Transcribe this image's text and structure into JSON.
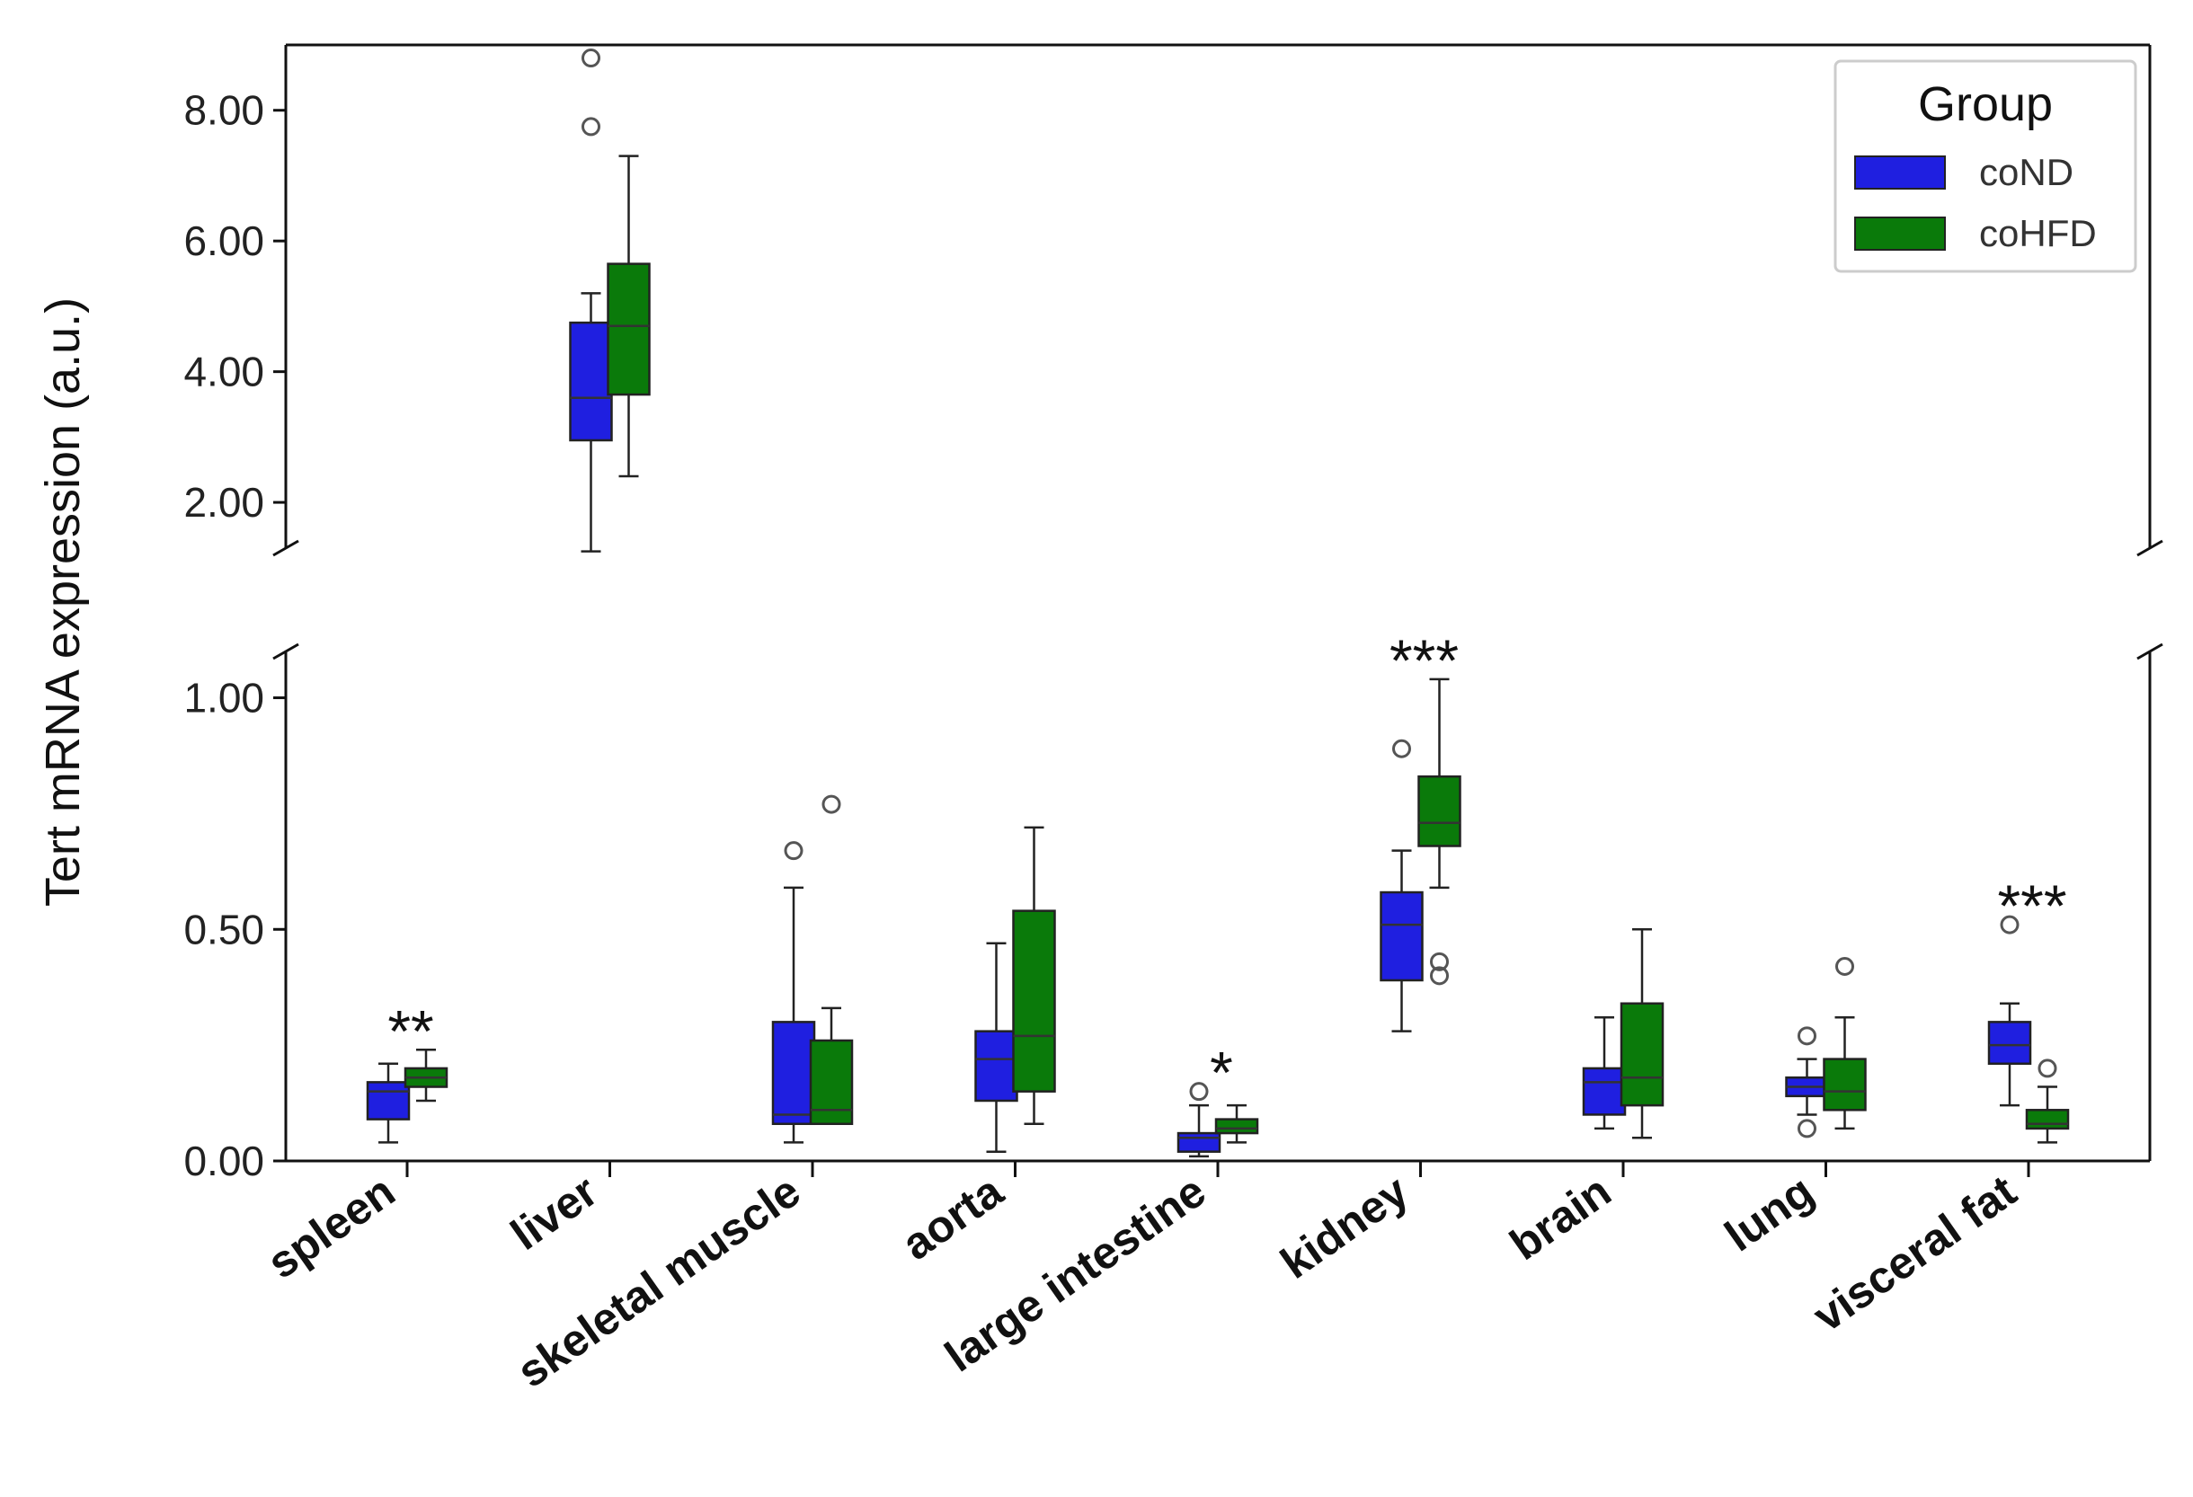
{
  "chart_data": {
    "type": "box",
    "ylabel": "Tert mRNA expression (a.u.)",
    "xlabel": "",
    "broken_axis": true,
    "lower_ylim": [
      0,
      1.1
    ],
    "upper_ylim": [
      1.3,
      9.0
    ],
    "lower_yticks": [
      {
        "value": 0.0,
        "label": "0.00"
      },
      {
        "value": 0.5,
        "label": "0.50"
      },
      {
        "value": 1.0,
        "label": "1.00"
      }
    ],
    "upper_yticks": [
      {
        "value": 2.0,
        "label": "2.00"
      },
      {
        "value": 4.0,
        "label": "4.00"
      },
      {
        "value": 6.0,
        "label": "6.00"
      },
      {
        "value": 8.0,
        "label": "8.00"
      }
    ],
    "legend": {
      "title": "Group",
      "position": "top-right",
      "entries": [
        {
          "name": "coND",
          "color": "#1f1fe0"
        },
        {
          "name": "coHFD",
          "color": "#0a7a0a"
        }
      ]
    },
    "categories": [
      "spleen",
      "liver",
      "skeletal muscle",
      "aorta",
      "large intestine",
      "kidney",
      "brain",
      "lung",
      "visceral fat"
    ],
    "significance": [
      "**",
      "",
      "",
      "",
      "*",
      "***",
      "",
      "",
      "***"
    ],
    "series": [
      {
        "name": "coND",
        "color": "#1f1fe0",
        "boxes": [
          {
            "min": 0.04,
            "q1": 0.09,
            "median": 0.15,
            "q3": 0.17,
            "max": 0.21,
            "outliers": []
          },
          {
            "min": 1.25,
            "q1": 2.95,
            "median": 3.6,
            "q3": 4.75,
            "max": 5.2,
            "outliers": [
              7.75,
              8.8
            ]
          },
          {
            "min": 0.04,
            "q1": 0.08,
            "median": 0.1,
            "q3": 0.3,
            "max": 0.59,
            "outliers": [
              0.67
            ]
          },
          {
            "min": 0.02,
            "q1": 0.13,
            "median": 0.22,
            "q3": 0.28,
            "max": 0.47,
            "outliers": []
          },
          {
            "min": 0.01,
            "q1": 0.02,
            "median": 0.05,
            "q3": 0.06,
            "max": 0.12,
            "outliers": [
              0.15
            ]
          },
          {
            "min": 0.28,
            "q1": 0.39,
            "median": 0.51,
            "q3": 0.58,
            "max": 0.67,
            "outliers": [
              0.89
            ]
          },
          {
            "min": 0.07,
            "q1": 0.1,
            "median": 0.17,
            "q3": 0.2,
            "max": 0.31,
            "outliers": []
          },
          {
            "min": 0.1,
            "q1": 0.14,
            "median": 0.16,
            "q3": 0.18,
            "max": 0.22,
            "outliers": [
              0.27,
              0.07
            ]
          },
          {
            "min": 0.12,
            "q1": 0.21,
            "median": 0.25,
            "q3": 0.3,
            "max": 0.34,
            "outliers": [
              0.51
            ]
          }
        ]
      },
      {
        "name": "coHFD",
        "color": "#0a7a0a",
        "boxes": [
          {
            "min": 0.13,
            "q1": 0.16,
            "median": 0.18,
            "q3": 0.2,
            "max": 0.24,
            "outliers": []
          },
          {
            "min": 2.4,
            "q1": 3.65,
            "median": 4.7,
            "q3": 5.65,
            "max": 7.3,
            "outliers": []
          },
          {
            "min": 0.08,
            "q1": 0.08,
            "median": 0.11,
            "q3": 0.26,
            "max": 0.33,
            "outliers": [
              0.77
            ]
          },
          {
            "min": 0.08,
            "q1": 0.15,
            "median": 0.27,
            "q3": 0.54,
            "max": 0.72,
            "outliers": []
          },
          {
            "min": 0.04,
            "q1": 0.06,
            "median": 0.07,
            "q3": 0.09,
            "max": 0.12,
            "outliers": []
          },
          {
            "min": 0.59,
            "q1": 0.68,
            "median": 0.73,
            "q3": 0.83,
            "max": 1.04,
            "outliers": [
              0.43,
              0.4
            ]
          },
          {
            "min": 0.05,
            "q1": 0.12,
            "median": 0.18,
            "q3": 0.34,
            "max": 0.5,
            "outliers": []
          },
          {
            "min": 0.07,
            "q1": 0.11,
            "median": 0.15,
            "q3": 0.22,
            "max": 0.31,
            "outliers": [
              0.42
            ]
          },
          {
            "min": 0.04,
            "q1": 0.07,
            "median": 0.08,
            "q3": 0.11,
            "max": 0.16,
            "outliers": [
              0.2
            ]
          }
        ]
      }
    ]
  }
}
